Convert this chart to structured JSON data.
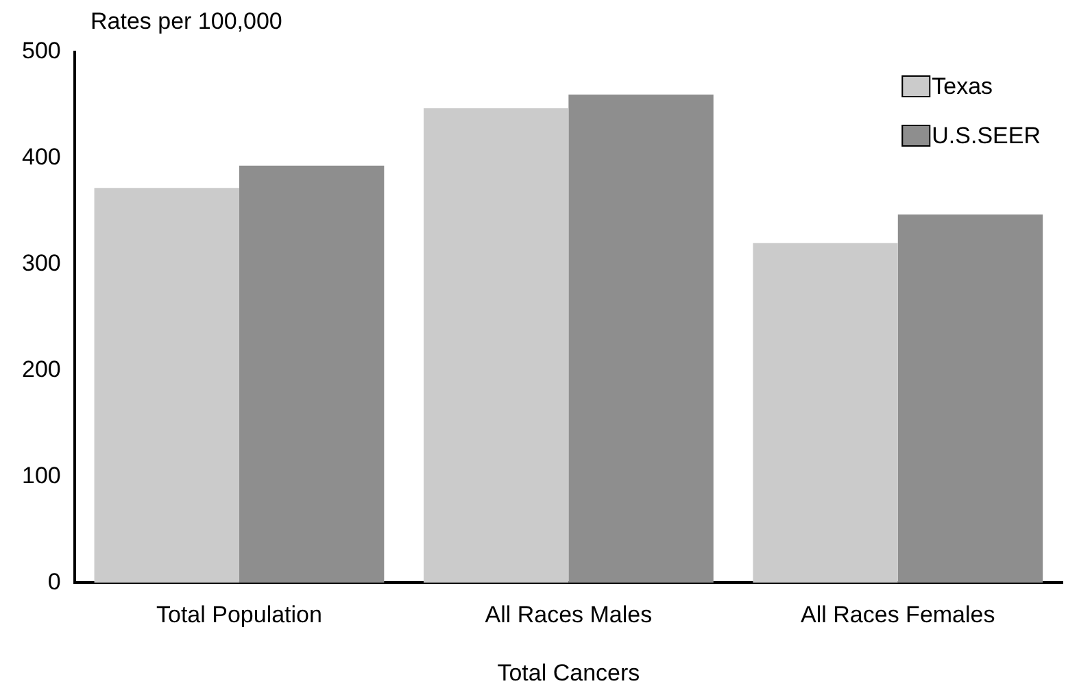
{
  "chart_data": {
    "type": "bar",
    "ylabel": "Rates per 100,000",
    "xlabel": "Total Cancers",
    "categories": [
      "Total Population",
      "All Races Males",
      "All Races Females"
    ],
    "series": [
      {
        "name": "Texas",
        "color": "#cbcbcb",
        "values": [
          372,
          447,
          320
        ]
      },
      {
        "name": "U.S.SEER",
        "color": "#8e8e8e",
        "values": [
          393,
          460,
          347
        ]
      }
    ],
    "ylim": [
      0,
      500
    ],
    "yticks": [
      0,
      100,
      200,
      300,
      400,
      500
    ],
    "grid": false,
    "legend": "top right"
  }
}
